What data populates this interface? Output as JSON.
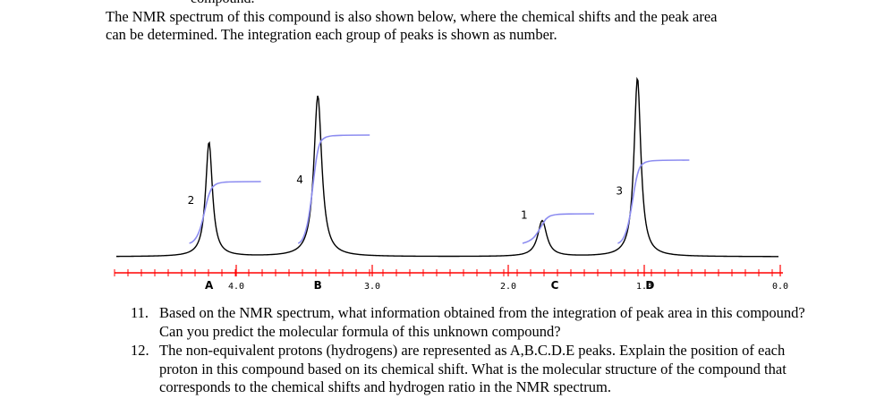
{
  "clipped_header": "compound.",
  "intro": {
    "line1": "The NMR spectrum of this compound is also shown below, where the chemical shifts and the peak area",
    "line2": "can be determined. The integration each group of peaks is shown as number."
  },
  "chart_data": {
    "type": "line",
    "title": "",
    "xlabel": "",
    "ylabel": "",
    "x_axis_reversed": true,
    "xlim": [
      4.6,
      0.0
    ],
    "ticks": [
      4.0,
      3.0,
      2.0,
      1.0,
      0.0
    ],
    "tick_labels": [
      "4.0",
      "3.0",
      "2.0",
      "1.0",
      "0.0"
    ],
    "peaks": [
      {
        "label": "A",
        "shift": 4.2,
        "integration": "2",
        "relative_height": 0.64,
        "width": 0.03
      },
      {
        "label": "B",
        "shift": 3.4,
        "integration": "4",
        "relative_height": 0.9,
        "width": 0.035
      },
      {
        "label": "C",
        "shift": 1.75,
        "integration": "1",
        "relative_height": 0.2,
        "width": 0.04
      },
      {
        "label": "D",
        "shift": 1.05,
        "integration": "3",
        "relative_height": 1.0,
        "width": 0.03
      }
    ],
    "integral_steps": [
      {
        "peak": "A",
        "relative_level": 0.42
      },
      {
        "peak": "B",
        "relative_level": 0.68
      },
      {
        "peak": "C",
        "relative_level": 0.24
      },
      {
        "peak": "D",
        "relative_level": 0.54
      }
    ],
    "colors": {
      "spectrum": "#000000",
      "integral": "#8c8cf0",
      "axis": "#ff0000"
    }
  },
  "questions": [
    {
      "number": "11.",
      "text": "Based on the NMR spectrum, what information obtained from the integration of peak area in this compound? Can you predict the molecular formula of this unknown compound?"
    },
    {
      "number": "12.",
      "text": "The non-equivalent protons (hydrogens) are represented  as A,B.C.D.E peaks. Explain the position of each proton in this compound based on its chemical shift. What is the molecular structure of the compound that corresponds to the chemical shifts and hydrogen ratio in the NMR spectrum."
    }
  ]
}
